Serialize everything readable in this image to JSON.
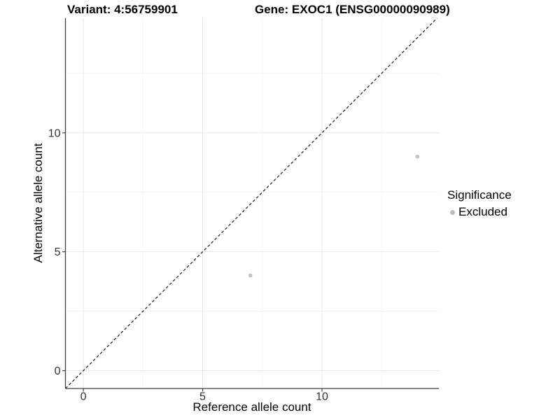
{
  "titles": {
    "variant": "Variant: 4:56759901",
    "gene": "Gene: EXOC1 (ENSG00000090989)"
  },
  "legend": {
    "title": "Significance",
    "items": [
      {
        "label": "Excluded",
        "color": "#bdbdbd"
      }
    ]
  },
  "chart_data": {
    "type": "scatter",
    "xlabel": "Reference allele count",
    "ylabel": "Alternative allele count",
    "xlim": [
      -0.75,
      14.9
    ],
    "ylim": [
      -0.75,
      14.82
    ],
    "x_ticks": [
      0,
      5,
      10
    ],
    "y_ticks": [
      0,
      5,
      10
    ],
    "x_minor_ticks": [
      2.5,
      7.5,
      12.5
    ],
    "y_minor_ticks": [
      2.5,
      7.5,
      12.5
    ],
    "grid": "on",
    "legend_position": "right",
    "series": [
      {
        "name": "Excluded",
        "color": "#c3c3c3",
        "points": [
          {
            "x": 7,
            "y": 4
          },
          {
            "x": 14,
            "y": 9
          }
        ]
      }
    ],
    "identity_line": {
      "style": "dashed",
      "slope": 1,
      "intercept": 0
    },
    "colors": {
      "grid_major": "#e7e7e7",
      "grid_minor": "#f2f2f2",
      "axis": "#404040",
      "tick_label": "#303030",
      "identity_line": "#1a1a1a"
    }
  }
}
